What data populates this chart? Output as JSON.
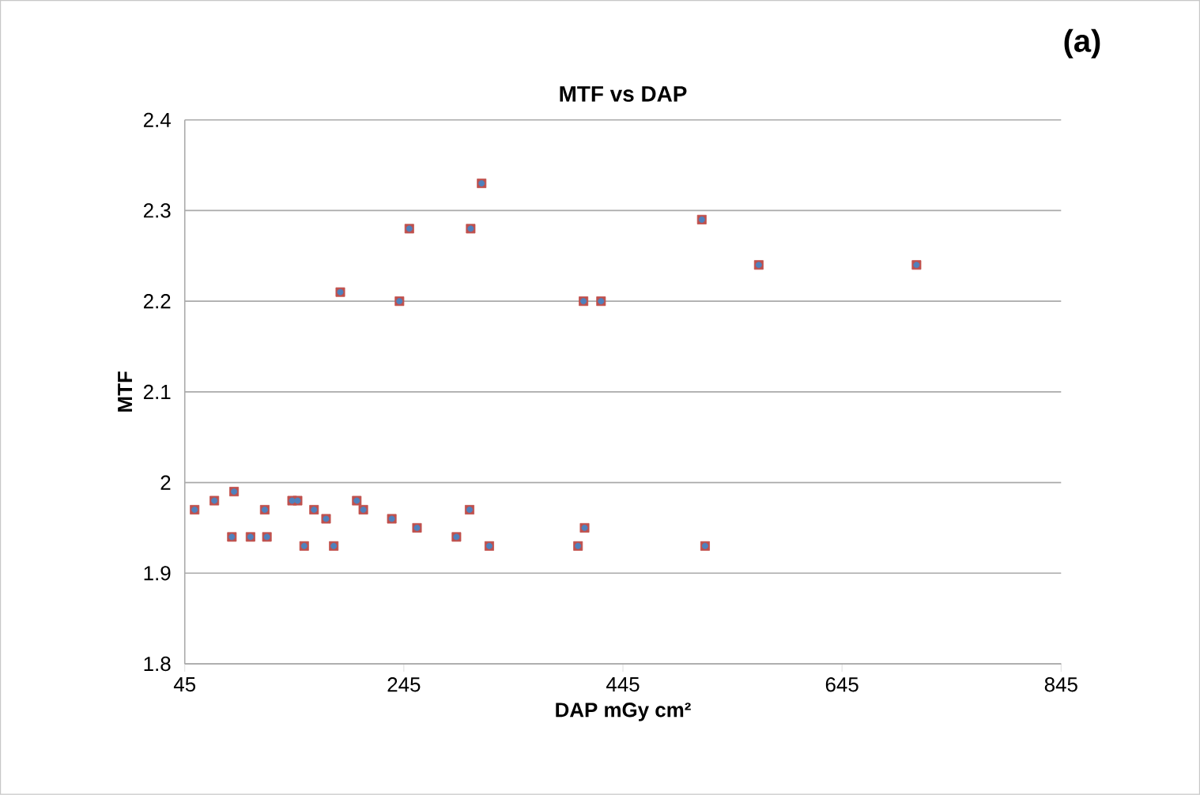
{
  "chart_data": {
    "type": "scatter",
    "title": "MTF vs DAP",
    "xlabel": "DAP mGy cm²",
    "ylabel": "MTF",
    "annotations": [
      "(a)"
    ],
    "xlim": [
      45,
      845
    ],
    "xticks": [
      45,
      245,
      445,
      645,
      845
    ],
    "ylim": [
      1.8,
      2.4
    ],
    "yticks": [
      1.8,
      1.9,
      2,
      2.1,
      2.2,
      2.3,
      2.4
    ],
    "grid": "y",
    "series": [
      {
        "color": "#c0504d",
        "marker": "square",
        "x": [
          54,
          72,
          90,
          88,
          105,
          118,
          120,
          143,
          148,
          154,
          163,
          174,
          181,
          202,
          208,
          234,
          257,
          293,
          305,
          323,
          404,
          410,
          520,
          187,
          241,
          250,
          306,
          316,
          409,
          425,
          517,
          569,
          713
        ],
        "values": [
          1.97,
          1.98,
          1.99,
          1.94,
          1.94,
          1.97,
          1.94,
          1.98,
          1.98,
          1.93,
          1.97,
          1.96,
          1.93,
          1.98,
          1.97,
          1.96,
          1.95,
          1.94,
          1.97,
          1.93,
          1.93,
          1.95,
          1.93,
          2.21,
          2.2,
          2.28,
          2.28,
          2.33,
          2.2,
          2.2,
          2.29,
          2.24,
          2.24
        ]
      },
      {
        "color": "#4f81bd",
        "marker": "circle",
        "x": [
          54,
          72,
          90,
          88,
          105,
          118,
          120,
          143,
          148,
          154,
          163,
          174,
          181,
          202,
          208,
          234,
          257,
          293,
          305,
          323,
          404,
          410,
          520,
          187,
          241,
          250,
          306,
          316,
          409,
          425,
          517,
          569,
          713
        ],
        "values": [
          1.97,
          1.98,
          1.99,
          1.94,
          1.94,
          1.97,
          1.94,
          1.98,
          1.98,
          1.93,
          1.97,
          1.96,
          1.93,
          1.98,
          1.97,
          1.96,
          1.95,
          1.94,
          1.97,
          1.93,
          1.93,
          1.95,
          1.93,
          2.21,
          2.2,
          2.28,
          2.28,
          2.33,
          2.2,
          2.2,
          2.29,
          2.24,
          2.24
        ]
      }
    ]
  }
}
